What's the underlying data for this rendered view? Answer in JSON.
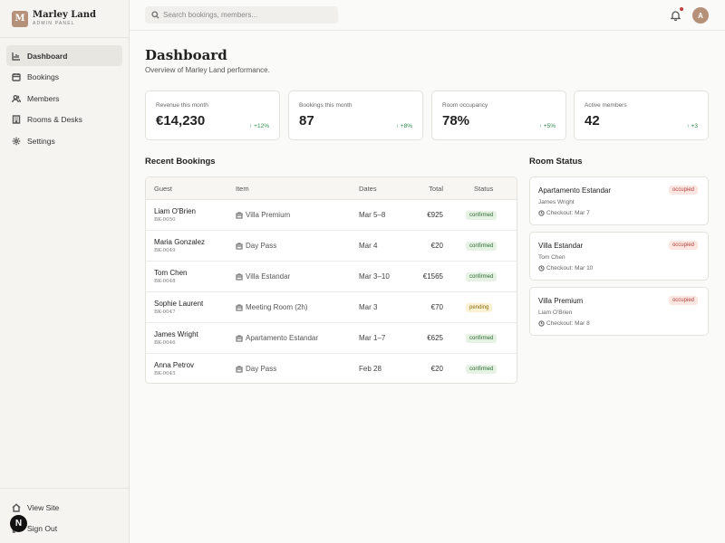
{
  "brand": {
    "logo_letter": "M",
    "name": "Marley Land",
    "subtitle": "ADMIN PANEL",
    "accent_color": "#b5917a"
  },
  "sidebar": {
    "items": [
      {
        "label": "Dashboard",
        "icon": "chart-icon",
        "active": true
      },
      {
        "label": "Bookings",
        "icon": "calendar-icon"
      },
      {
        "label": "Members",
        "icon": "users-icon"
      },
      {
        "label": "Rooms & Desks",
        "icon": "building-icon"
      },
      {
        "label": "Settings",
        "icon": "gear-icon"
      }
    ],
    "bottom": [
      {
        "label": "View Site",
        "icon": "home-icon"
      },
      {
        "label": "Sign Out",
        "icon": "logout-icon"
      }
    ],
    "badge_letter": "N"
  },
  "topbar": {
    "search_placeholder": "Search bookings, members...",
    "avatar_letter": "A"
  },
  "page": {
    "title": "Dashboard",
    "subtitle": "Overview of Marley Land performance."
  },
  "stats": [
    {
      "label": "Revenue this month",
      "value": "€14,230",
      "delta": "↑ +12%"
    },
    {
      "label": "Bookings this month",
      "value": "87",
      "delta": "↑ +8%"
    },
    {
      "label": "Room occupancy",
      "value": "78%",
      "delta": "↑ +5%"
    },
    {
      "label": "Active members",
      "value": "42",
      "delta": "↑ +3"
    }
  ],
  "recent_bookings": {
    "title": "Recent Bookings",
    "columns": {
      "guest": "Guest",
      "item": "Item",
      "dates": "Dates",
      "total": "Total",
      "status": "Status"
    },
    "rows": [
      {
        "name": "Liam O'Brien",
        "id": "BK-0050",
        "item": "Villa Premium",
        "dates": "Mar 5–8",
        "total": "€925",
        "status": "confirmed"
      },
      {
        "name": "Maria Gonzalez",
        "id": "BK-0049",
        "item": "Day Pass",
        "dates": "Mar 4",
        "total": "€20",
        "status": "confirmed"
      },
      {
        "name": "Tom Chen",
        "id": "BK-0048",
        "item": "Villa Estandar",
        "dates": "Mar 3–10",
        "total": "€1565",
        "status": "confirmed"
      },
      {
        "name": "Sophie Laurent",
        "id": "BK-0047",
        "item": "Meeting Room (2h)",
        "dates": "Mar 3",
        "total": "€70",
        "status": "pending"
      },
      {
        "name": "James Wright",
        "id": "BK-0046",
        "item": "Apartamento Estandar",
        "dates": "Mar 1–7",
        "total": "€625",
        "status": "confirmed"
      },
      {
        "name": "Anna Petrov",
        "id": "BK-0045",
        "item": "Day Pass",
        "dates": "Feb 28",
        "total": "€20",
        "status": "confirmed"
      }
    ]
  },
  "room_status": {
    "title": "Room Status",
    "rooms": [
      {
        "name": "Apartamento Estandar",
        "status": "occupied",
        "guest": "James Wright",
        "checkout": "Checkout: Mar 7"
      },
      {
        "name": "Villa Estandar",
        "status": "occupied",
        "guest": "Tom Chen",
        "checkout": "Checkout: Mar 10"
      },
      {
        "name": "Villa Premium",
        "status": "occupied",
        "guest": "Liam O'Brien",
        "checkout": "Checkout: Mar 8"
      }
    ]
  }
}
